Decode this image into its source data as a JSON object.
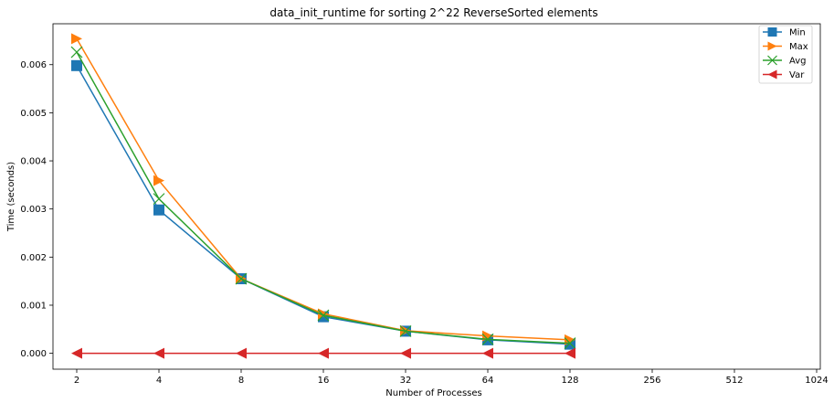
{
  "chart_data": {
    "type": "line",
    "title": "data_init_runtime for sorting 2^22 ReverseSorted elements",
    "xlabel": "Number of Processes",
    "ylabel": "Time (seconds)",
    "x_categories": [
      "2",
      "4",
      "8",
      "16",
      "32",
      "64",
      "128",
      "256",
      "512",
      "1024"
    ],
    "y_ticks": [
      "0.000",
      "0.001",
      "0.002",
      "0.003",
      "0.004",
      "0.005",
      "0.006"
    ],
    "ylim": [
      -0.00033,
      0.00685
    ],
    "grid": false,
    "legend_position": "top-right",
    "series": [
      {
        "name": "Min",
        "marker": "square",
        "color": "#1f77b4",
        "values": [
          0.00598,
          0.00298,
          0.00155,
          0.00076,
          0.00046,
          0.00028,
          0.00019
        ]
      },
      {
        "name": "Max",
        "marker": "triangle-right",
        "color": "#ff7f0e",
        "values": [
          0.00654,
          0.00359,
          0.00155,
          0.00082,
          0.00047,
          0.00036,
          0.00028
        ]
      },
      {
        "name": "Avg",
        "marker": "x",
        "color": "#2ca02c",
        "values": [
          0.00626,
          0.00321,
          0.00155,
          0.00079,
          0.00046,
          0.00029,
          0.00021
        ]
      },
      {
        "name": "Var",
        "marker": "triangle-left",
        "color": "#d62728",
        "values": [
          0.0,
          0.0,
          0.0,
          0.0,
          0.0,
          0.0,
          0.0
        ]
      }
    ]
  }
}
